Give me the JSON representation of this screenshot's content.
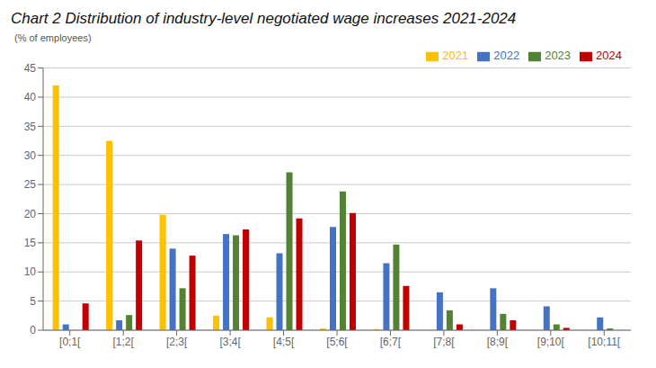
{
  "chart_data": {
    "type": "bar",
    "title": "Chart 2 Distribution of industry-level negotiated wage increases 2021-2024",
    "ylabel": "(% of employees)",
    "categories": [
      "[0;1[",
      "[1;2[",
      "[2;3[",
      "[3;4[",
      "[4;5[",
      "[5;6[",
      "[6;7[",
      "[7;8[",
      "[8;9[",
      "[9;10[",
      "[10;11["
    ],
    "series": [
      {
        "name": "2021",
        "color": "#FFC000",
        "values": [
          42,
          32.5,
          19.8,
          2.5,
          2.2,
          0.3,
          0.2,
          0,
          0,
          0,
          0
        ]
      },
      {
        "name": "2022",
        "color": "#4472C4",
        "values": [
          1,
          1.7,
          14,
          16.5,
          13.2,
          17.7,
          11.5,
          6.5,
          7.2,
          4.1,
          2.2
        ]
      },
      {
        "name": "2023",
        "color": "#548235",
        "values": [
          0,
          2.6,
          7.2,
          16.3,
          27.1,
          23.8,
          14.7,
          3.4,
          2.8,
          1.0,
          0.3
        ]
      },
      {
        "name": "2024",
        "color": "#C00000",
        "values": [
          4.6,
          15.4,
          12.8,
          17.3,
          19.2,
          20.1,
          7.6,
          1.0,
          1.7,
          0.4,
          0
        ]
      }
    ],
    "ylim": [
      0,
      45
    ],
    "yticks": [
      0,
      5,
      10,
      15,
      20,
      25,
      30,
      35,
      40,
      45
    ],
    "grid": true,
    "legend": "upper right"
  }
}
